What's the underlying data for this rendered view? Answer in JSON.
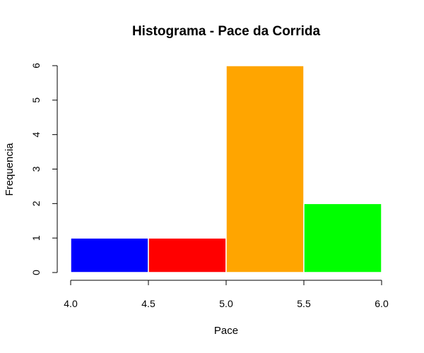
{
  "chart_data": {
    "type": "bar",
    "title": "Histograma - Pace da Corrida",
    "xlabel": "Pace",
    "ylabel": "Frequencia",
    "bins": [
      {
        "from": 4.0,
        "to": 4.5,
        "value": 1,
        "color": "#0000ff"
      },
      {
        "from": 4.5,
        "to": 5.0,
        "value": 1,
        "color": "#ff0000"
      },
      {
        "from": 5.0,
        "to": 5.5,
        "value": 6,
        "color": "#ffa500"
      },
      {
        "from": 5.5,
        "to": 6.0,
        "value": 2,
        "color": "#00ff00"
      }
    ],
    "xlim": [
      4.0,
      6.0
    ],
    "ylim": [
      0,
      6
    ],
    "x_ticks": [
      "4.0",
      "4.5",
      "5.0",
      "5.5",
      "6.0"
    ],
    "y_ticks": [
      "0",
      "1",
      "2",
      "3",
      "4",
      "5",
      "6"
    ],
    "grid": false
  }
}
